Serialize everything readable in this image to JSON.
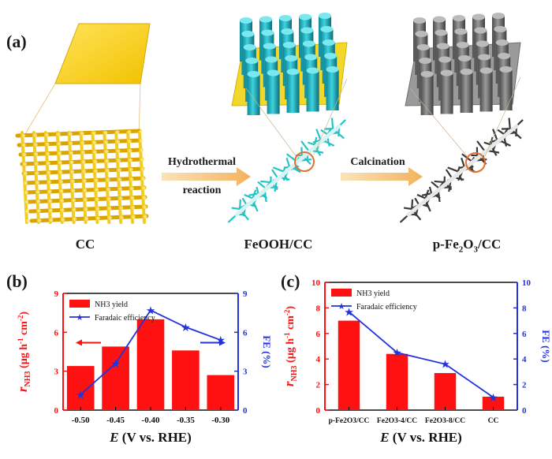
{
  "panel_a": {
    "letter": "(a)",
    "stages": {
      "cc": "CC",
      "feooh": "FeOOH/CC",
      "pfe2o3_base": "p-Fe",
      "pfe2o3_sub2": "2",
      "pfe2o3_mid": "O",
      "pfe2o3_sub3": "3",
      "pfe2o3_tail": "/CC"
    },
    "arrow1_line1": "Hydrothermal",
    "arrow1_line2": "reaction",
    "arrow2_label": "Calcination"
  },
  "colors": {
    "bar": "#ff1111",
    "line": "#2233dd",
    "cc_gold": "#e8c21a",
    "feooh_teal": "#22b8c8",
    "gray": "#777777"
  },
  "chart_data": [
    {
      "panel": "(b)",
      "type": "bar",
      "categories": [
        "-0.50",
        "-0.45",
        "-0.40",
        "-0.35",
        "-0.30"
      ],
      "series": [
        {
          "name": "NH3 yield",
          "axis": "left",
          "kind": "bar",
          "values": [
            3.4,
            4.9,
            7.0,
            4.6,
            2.7
          ]
        },
        {
          "name": "Faradaic efficiency",
          "axis": "right",
          "kind": "line",
          "marker": "star",
          "values": [
            1.2,
            3.6,
            7.7,
            6.4,
            5.4
          ]
        }
      ],
      "ylim": [
        0,
        9
      ],
      "y_ticks": [
        "0",
        "3",
        "6",
        "9"
      ],
      "y2lim": [
        0,
        9
      ],
      "y2_ticks": [
        "0",
        "3",
        "6",
        "9"
      ],
      "ylabel_r": "r",
      "ylabel_sub": "NH3",
      "ylabel_rest": " (µg h",
      "ylabel_exp1": "-1",
      "ylabel_mid": " cm",
      "ylabel_exp2": "-2",
      "ylabel_end": ")",
      "y2label": "FE (%)",
      "xlabel_E": "E",
      "xlabel_rest": " (V vs. RHE)",
      "legend": [
        "NH3 yield",
        "Faradaic efficiency"
      ]
    },
    {
      "panel": "(c)",
      "type": "bar",
      "categories": [
        "p-Fe2O3/CC",
        "Fe2O3-4/CC",
        "Fe2O3-8/CC",
        "CC"
      ],
      "series": [
        {
          "name": "NH3 yield",
          "axis": "left",
          "kind": "bar",
          "values": [
            7.0,
            4.4,
            2.9,
            1.05
          ]
        },
        {
          "name": "Faradaic efficiency",
          "axis": "right",
          "kind": "line",
          "marker": "star",
          "values": [
            7.7,
            4.5,
            3.6,
            1.0
          ]
        }
      ],
      "ylim": [
        0,
        10
      ],
      "y_ticks": [
        "0",
        "2",
        "4",
        "6",
        "8",
        "10"
      ],
      "y2lim": [
        0,
        10
      ],
      "y2_ticks": [
        "0",
        "2",
        "4",
        "6",
        "8",
        "10"
      ],
      "ylabel_r": "r",
      "ylabel_sub": "NH3",
      "ylabel_rest": " (µg h",
      "ylabel_exp1": "-1",
      "ylabel_mid": " cm",
      "ylabel_exp2": "-2",
      "ylabel_end": ")",
      "y2label": "FE (%)",
      "xlabel_E": "E",
      "xlabel_rest": " (V vs. RHE)",
      "legend": [
        "NH3 yield",
        "Faradaic efficiency"
      ]
    }
  ]
}
